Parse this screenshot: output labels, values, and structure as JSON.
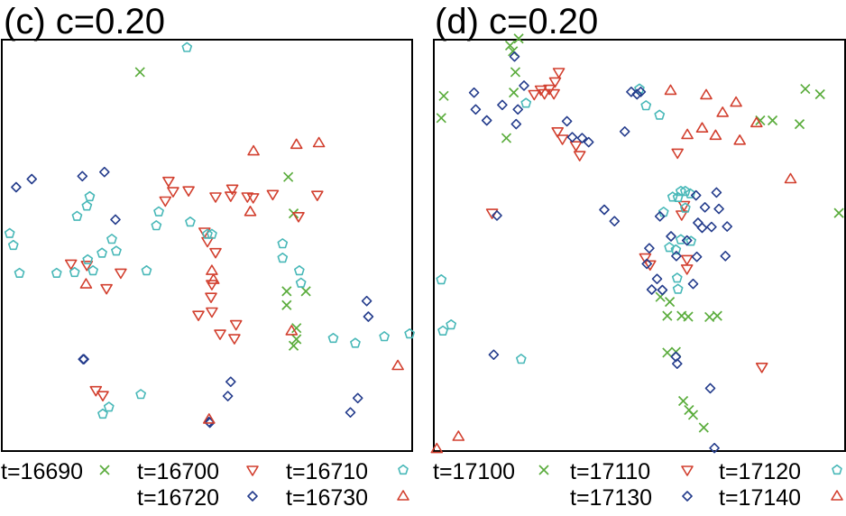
{
  "colors": {
    "green": "#5aac3c",
    "red": "#d23f2e",
    "cyan": "#48b8b8",
    "blue": "#243c8c",
    "frame": "#000000"
  },
  "chart_data": [
    {
      "type": "scatter",
      "title": "(c) c=0.20",
      "xlim": [
        0,
        100
      ],
      "ylim": [
        0,
        100
      ],
      "legend_position": "bottom",
      "series": [
        {
          "name": "t=16690",
          "marker": "x",
          "color": "#5aac3c",
          "points": [
            [
              33.6,
              92.3
            ],
            [
              69.9,
              66.7
            ],
            [
              71.2,
              57.8
            ],
            [
              69.5,
              38.8
            ],
            [
              74.2,
              38.8
            ],
            [
              69.5,
              35.4
            ],
            [
              71.9,
              29.8
            ],
            [
              71.9,
              27.1
            ],
            [
              71.2,
              25.5
            ]
          ]
        },
        {
          "name": "t=16700",
          "marker": "tri-down",
          "color": "#d23f2e",
          "points": [
            [
              40.6,
              65.7
            ],
            [
              41.7,
              63.2
            ],
            [
              45.5,
              63.4
            ],
            [
              56.2,
              63.8
            ],
            [
              52.1,
              61.9
            ],
            [
              55.8,
              62.1
            ],
            [
              59.9,
              61.9
            ],
            [
              61.3,
              61.7
            ],
            [
              66.1,
              62.5
            ],
            [
              77.0,
              62.3
            ],
            [
              39.8,
              60.9
            ],
            [
              72.4,
              57.1
            ],
            [
              49.4,
              53.3
            ],
            [
              50.1,
              51.0
            ],
            [
              52.1,
              48.3
            ],
            [
              16.7,
              45.5
            ],
            [
              20.6,
              45.2
            ],
            [
              28.9,
              43.3
            ],
            [
              51.2,
              40.5
            ],
            [
              25.4,
              39.5
            ],
            [
              51.0,
              37.4
            ],
            [
              47.9,
              33.0
            ],
            [
              51.2,
              33.8
            ],
            [
              57.1,
              30.7
            ],
            [
              53.2,
              28.4
            ],
            [
              56.7,
              27.3
            ],
            [
              22.8,
              14.6
            ],
            [
              24.5,
              13.4
            ]
          ]
        },
        {
          "name": "t=16710",
          "marker": "pentagon",
          "color": "#48b8b8",
          "points": [
            [
              45.1,
              98.3
            ],
            [
              21.3,
              61.9
            ],
            [
              20.6,
              59.6
            ],
            [
              18.2,
              57.1
            ],
            [
              38.2,
              58.2
            ],
            [
              37.6,
              54.8
            ],
            [
              45.9,
              55.7
            ],
            [
              1.7,
              52.9
            ],
            [
              2.6,
              50.0
            ],
            [
              26.7,
              51.5
            ],
            [
              27.8,
              48.6
            ],
            [
              24.3,
              48.1
            ],
            [
              20.8,
              46.5
            ],
            [
              22.1,
              43.8
            ],
            [
              35.2,
              43.8
            ],
            [
              50.1,
              52.7
            ],
            [
              51.2,
              52.7
            ],
            [
              68.5,
              50.4
            ],
            [
              68.5,
              46.9
            ],
            [
              72.6,
              43.8
            ],
            [
              73.0,
              40.8
            ],
            [
              4.1,
              43.2
            ],
            [
              13.2,
              43.2
            ],
            [
              17.6,
              43.4
            ],
            [
              80.9,
              27.3
            ],
            [
              86.3,
              26.1
            ],
            [
              93.4,
              27.7
            ],
            [
              99.6,
              28.4
            ],
            [
              33.8,
              13.6
            ],
            [
              26.0,
              10.5
            ],
            [
              24.5,
              8.8
            ]
          ]
        },
        {
          "name": "t=16720",
          "marker": "diamond",
          "color": "#243c8c",
          "points": [
            [
              7.1,
              66.2
            ],
            [
              3.3,
              64.2
            ],
            [
              19.5,
              66.9
            ],
            [
              24.9,
              67.9
            ],
            [
              27.6,
              56.3
            ],
            [
              89.1,
              36.4
            ],
            [
              89.5,
              32.6
            ],
            [
              19.7,
              22.2
            ],
            [
              19.9,
              22.2
            ],
            [
              55.8,
              16.7
            ],
            [
              55.1,
              13.2
            ],
            [
              86.9,
              12.7
            ],
            [
              85.1,
              9.2
            ],
            [
              50.5,
              6.9
            ],
            [
              50.7,
              6.7
            ]
          ]
        },
        {
          "name": "t=16730",
          "marker": "tri-up",
          "color": "#d23f2e",
          "points": [
            [
              61.4,
              73.0
            ],
            [
              71.9,
              74.6
            ],
            [
              77.4,
              75.0
            ],
            [
              60.6,
              58.2
            ],
            [
              20.4,
              40.5
            ],
            [
              51.2,
              43.8
            ],
            [
              51.6,
              41.6
            ],
            [
              70.7,
              29.1
            ],
            [
              96.7,
              20.6
            ],
            [
              50.5,
              7.5
            ]
          ]
        }
      ]
    },
    {
      "type": "scatter",
      "title": "(d) c=0.20",
      "xlim": [
        0,
        100
      ],
      "ylim": [
        0,
        100
      ],
      "legend_position": "bottom",
      "series": [
        {
          "name": "t=17100",
          "marker": "x",
          "color": "#5aac3c",
          "points": [
            [
              20.5,
              100.5
            ],
            [
              18.4,
              98.8
            ],
            [
              19.1,
              97.4
            ],
            [
              19.7,
              92.3
            ],
            [
              19.3,
              87.3
            ],
            [
              2.2,
              86.5
            ],
            [
              1.6,
              81.1
            ],
            [
              17.5,
              76.2
            ],
            [
              90.5,
              88.2
            ],
            [
              94.1,
              86.9
            ],
            [
              79.5,
              80.5
            ],
            [
              82.5,
              80.5
            ],
            [
              89.1,
              79.6
            ],
            [
              98.7,
              57.9
            ],
            [
              55.1,
              37.4
            ],
            [
              57.4,
              36.2
            ],
            [
              56.8,
              32.8
            ],
            [
              60.3,
              32.8
            ],
            [
              61.9,
              32.6
            ],
            [
              67.1,
              32.5
            ],
            [
              69.0,
              32.8
            ],
            [
              56.8,
              23.8
            ],
            [
              58.9,
              24.0
            ],
            [
              60.7,
              12.0
            ],
            [
              62.1,
              9.8
            ],
            [
              63.1,
              8.6
            ],
            [
              65.7,
              5.5
            ]
          ]
        },
        {
          "name": "t=17110",
          "marker": "tri-down",
          "color": "#d23f2e",
          "points": [
            [
              30.3,
              92.3
            ],
            [
              29.4,
              90.0
            ],
            [
              25.9,
              88.0
            ],
            [
              28.0,
              88.2
            ],
            [
              24.3,
              86.9
            ],
            [
              26.8,
              87.1
            ],
            [
              29.1,
              87.1
            ],
            [
              30.0,
              77.8
            ],
            [
              31.2,
              76.0
            ],
            [
              34.5,
              74.4
            ],
            [
              35.4,
              72.0
            ],
            [
              59.3,
              72.6
            ],
            [
              60.9,
              59.8
            ],
            [
              60.3,
              57.5
            ],
            [
              14.0,
              57.9
            ],
            [
              51.4,
              47.0
            ],
            [
              52.6,
              45.3
            ],
            [
              61.6,
              46.6
            ],
            [
              61.6,
              44.3
            ],
            [
              79.9,
              20.3
            ]
          ]
        },
        {
          "name": "t=17120",
          "marker": "pentagon",
          "color": "#48b8b8",
          "points": [
            [
              50.0,
              88.2
            ],
            [
              51.6,
              84.1
            ],
            [
              54.9,
              81.8
            ],
            [
              22.3,
              84.7
            ],
            [
              60.1,
              63.2
            ],
            [
              61.2,
              63.2
            ],
            [
              62.4,
              62.6
            ],
            [
              58.1,
              61.8
            ],
            [
              59.4,
              61.7
            ],
            [
              61.2,
              59.1
            ],
            [
              55.9,
              58.1
            ],
            [
              57.3,
              49.5
            ],
            [
              58.9,
              48.9
            ],
            [
              60.1,
              51.4
            ],
            [
              62.6,
              51.0
            ],
            [
              1.6,
              41.6
            ],
            [
              59.2,
              42.0
            ],
            [
              59.4,
              39.3
            ],
            [
              4.0,
              30.6
            ],
            [
              2.0,
              29.1
            ],
            [
              21.1,
              22.2
            ]
          ]
        },
        {
          "name": "t=17130",
          "marker": "diamond",
          "color": "#243c8c",
          "points": [
            [
              19.5,
              96.1
            ],
            [
              21.8,
              89.0
            ],
            [
              16.5,
              84.3
            ],
            [
              20.3,
              83.2
            ],
            [
              9.6,
              87.3
            ],
            [
              10.0,
              83.2
            ],
            [
              12.7,
              80.5
            ],
            [
              19.9,
              79.6
            ],
            [
              32.3,
              80.3
            ],
            [
              33.6,
              76.4
            ],
            [
              37.6,
              75.2
            ],
            [
              36.0,
              76.2
            ],
            [
              48.0,
              87.5
            ],
            [
              50.3,
              87.5
            ],
            [
              49.4,
              86.9
            ],
            [
              46.4,
              77.8
            ],
            [
              15.2,
              57.3
            ],
            [
              41.4,
              58.7
            ],
            [
              43.9,
              55.9
            ],
            [
              55.0,
              57.1
            ],
            [
              63.8,
              62.2
            ],
            [
              66.0,
              59.3
            ],
            [
              68.8,
              62.9
            ],
            [
              69.4,
              58.9
            ],
            [
              64.3,
              55.5
            ],
            [
              65.3,
              54.3
            ],
            [
              67.6,
              54.5
            ],
            [
              71.4,
              54.6
            ],
            [
              57.7,
              52.2
            ],
            [
              61.6,
              51.2
            ],
            [
              52.4,
              49.3
            ],
            [
              59.0,
              47.4
            ],
            [
              64.0,
              47.2
            ],
            [
              51.8,
              45.5
            ],
            [
              54.3,
              41.8
            ],
            [
              53.0,
              39.2
            ],
            [
              55.6,
              39.1
            ],
            [
              63.1,
              40.6
            ],
            [
              71.0,
              47.4
            ],
            [
              14.4,
              23.3
            ],
            [
              59.2,
              21.1
            ],
            [
              58.9,
              22.8
            ],
            [
              67.3,
              15.1
            ],
            [
              68.3,
              0.5
            ]
          ]
        },
        {
          "name": "t=17140",
          "marker": "tri-up",
          "color": "#d23f2e",
          "points": [
            [
              57.6,
              87.8
            ],
            [
              66.3,
              86.7
            ],
            [
              70.3,
              82.4
            ],
            [
              73.6,
              84.9
            ],
            [
              65.3,
              78.6
            ],
            [
              78.6,
              79.9
            ],
            [
              68.6,
              76.8
            ],
            [
              74.5,
              75.6
            ],
            [
              61.7,
              77.0
            ],
            [
              86.9,
              66.2
            ],
            [
              5.8,
              3.3
            ],
            [
              0.5,
              0.3
            ]
          ]
        }
      ]
    }
  ]
}
